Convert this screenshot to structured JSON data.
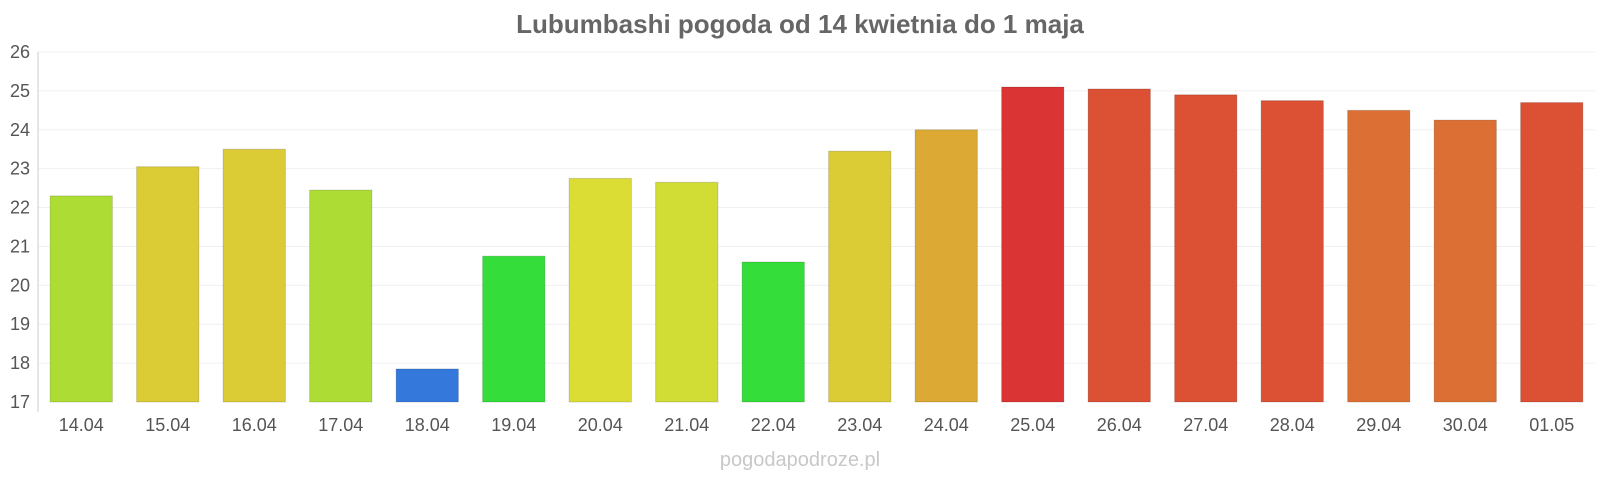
{
  "chart_data": {
    "type": "bar",
    "title": "Lubumbashi pogoda od 14 kwietnia do 1 maja",
    "xlabel": "",
    "ylabel": "",
    "ylim": [
      17,
      26
    ],
    "yticks": [
      17,
      18,
      19,
      20,
      21,
      22,
      23,
      24,
      25,
      26
    ],
    "grid": true,
    "legend": "none",
    "categories": [
      "14.04",
      "15.04",
      "16.04",
      "17.04",
      "18.04",
      "19.04",
      "20.04",
      "21.04",
      "22.04",
      "23.04",
      "24.04",
      "25.04",
      "26.04",
      "27.04",
      "28.04",
      "29.04",
      "30.04",
      "01.05"
    ],
    "values": [
      22.3,
      23.05,
      23.5,
      22.45,
      17.85,
      20.75,
      22.75,
      22.65,
      20.6,
      23.45,
      24.0,
      25.1,
      25.05,
      24.9,
      24.75,
      24.5,
      24.25,
      24.7
    ],
    "colors": [
      "#addd34",
      "#dbcb34",
      "#dbcb34",
      "#addd34",
      "#3478dc",
      "#34dd3a",
      "#dbdd34",
      "#d1dd34",
      "#34dd3a",
      "#dbcb34",
      "#dba934",
      "#db3434",
      "#dc5034",
      "#dc5034",
      "#dc5034",
      "#dc7034",
      "#dc7034",
      "#dc5034"
    ]
  },
  "footer": {
    "source": "pogodapodroze.pl"
  }
}
